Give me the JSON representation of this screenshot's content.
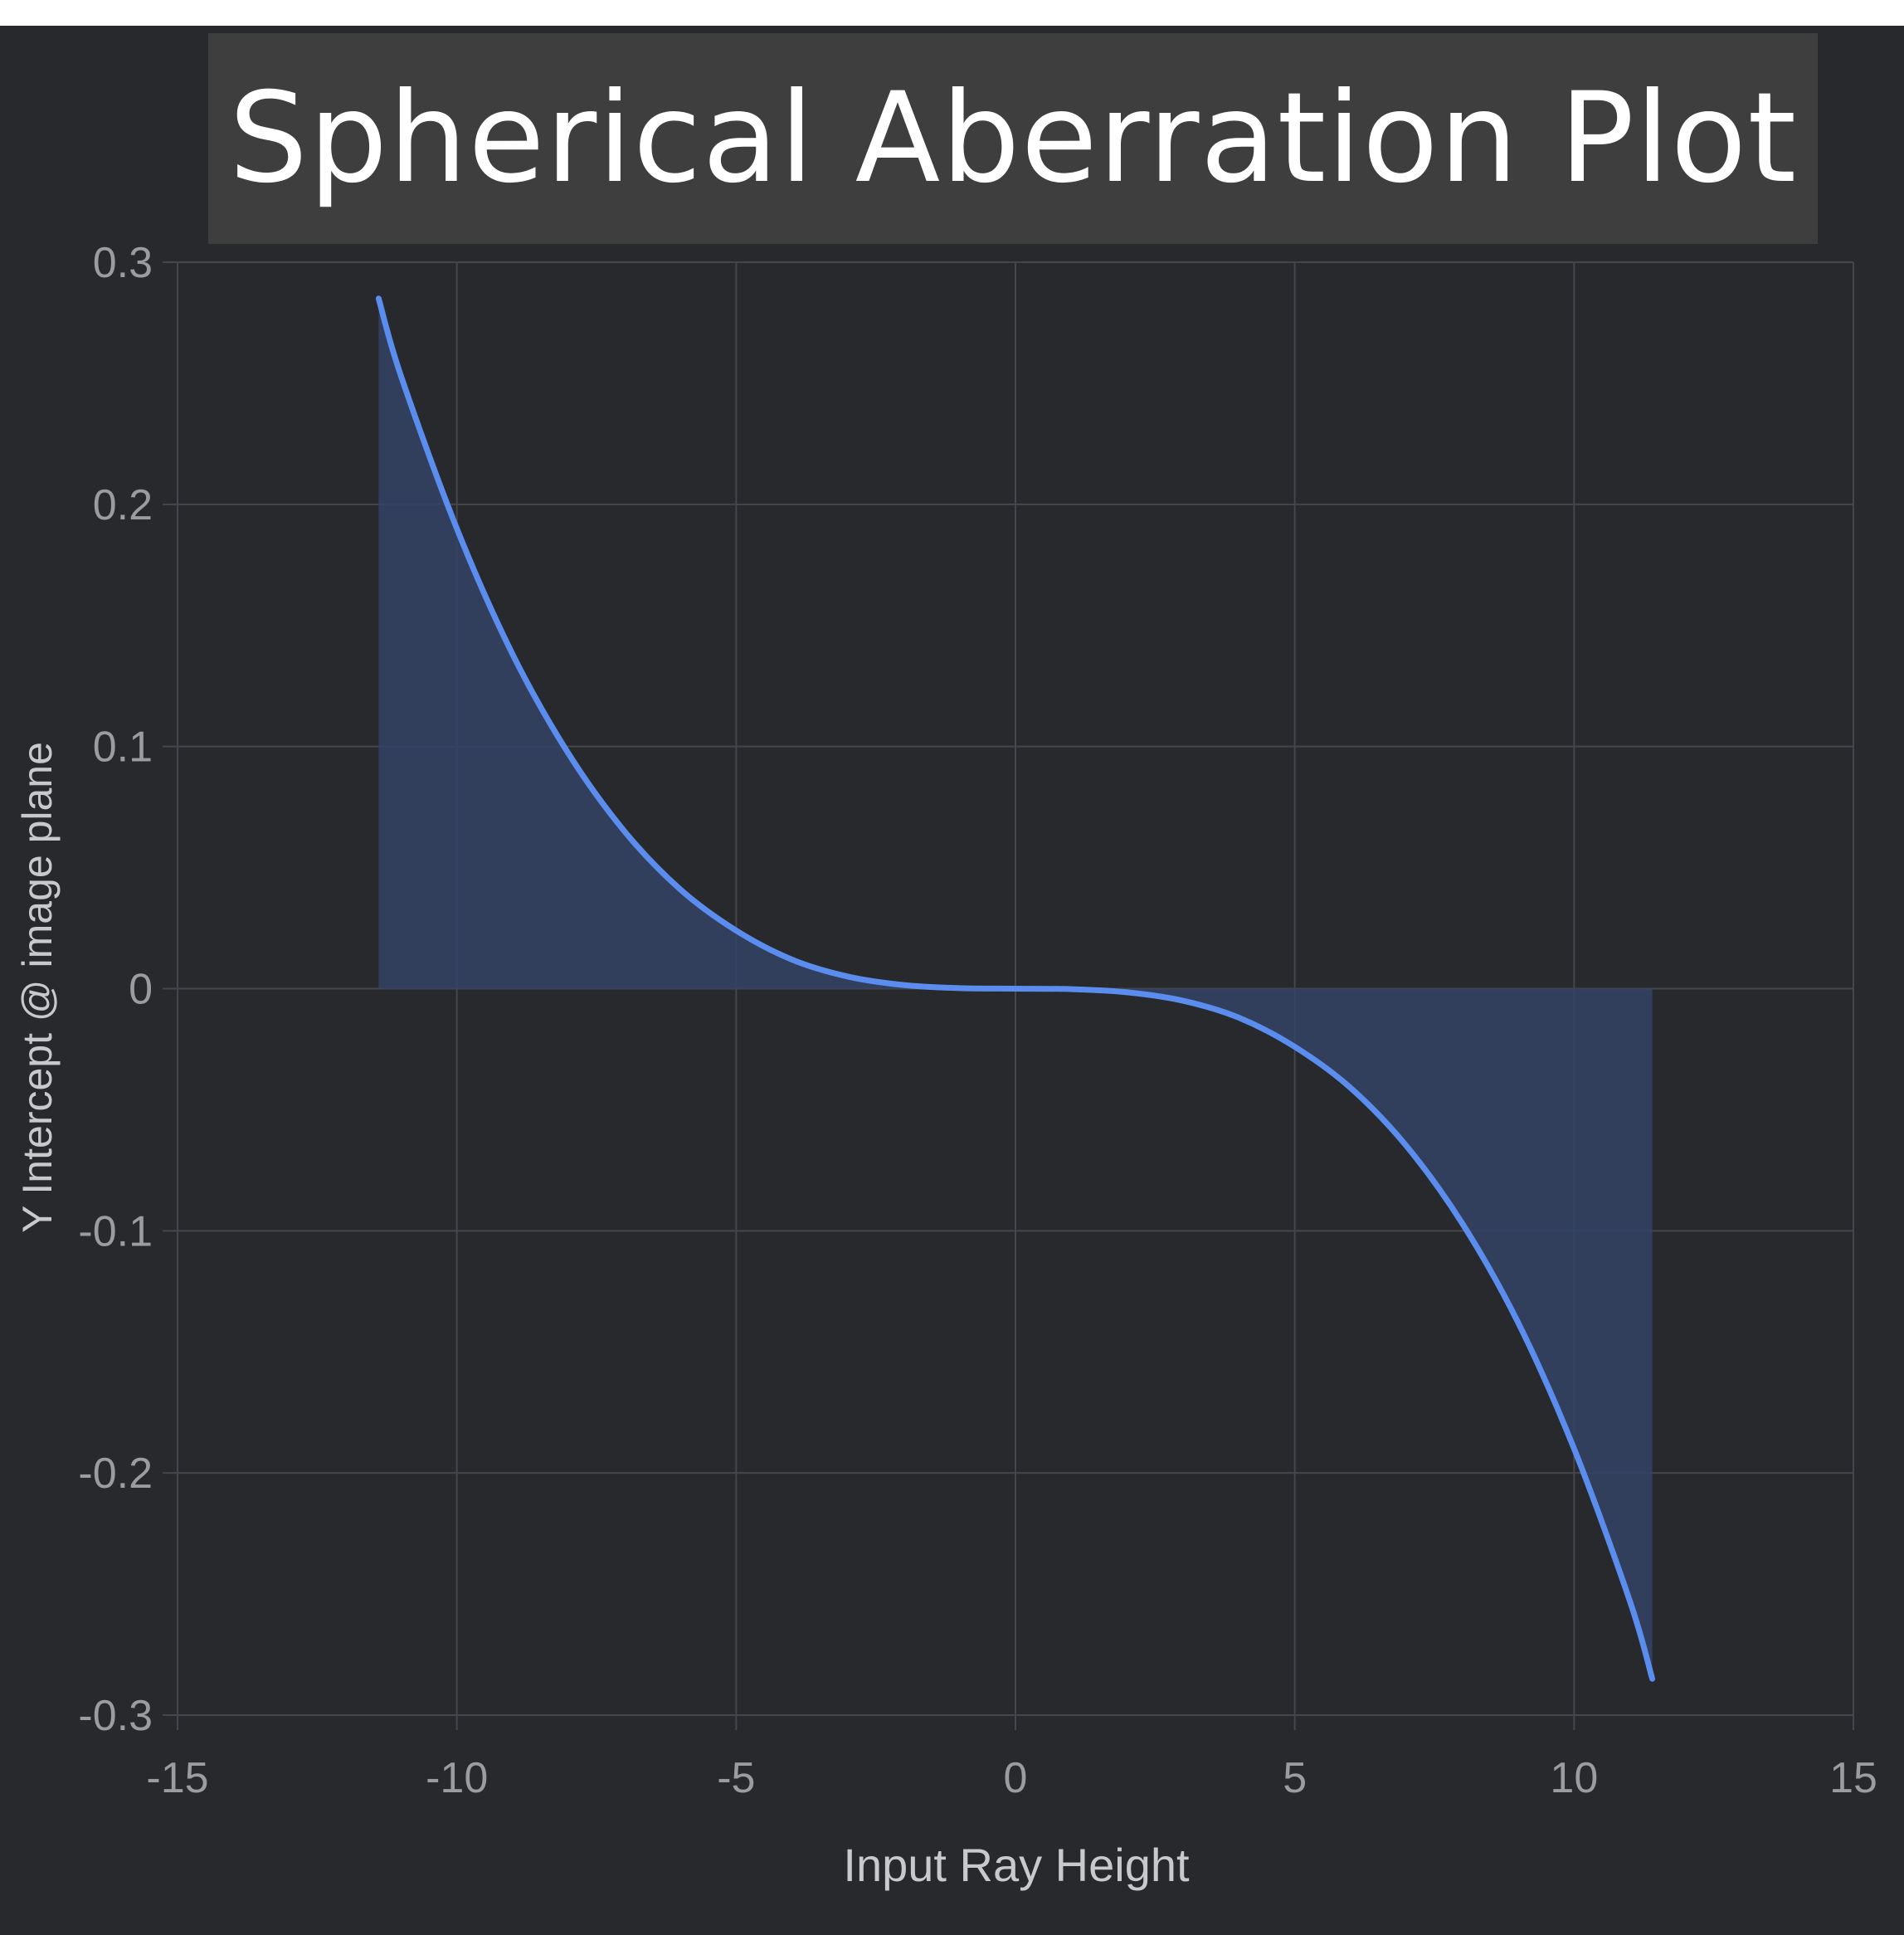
{
  "chart_data": {
    "type": "area",
    "title": "Spherical Aberration Plot",
    "xlabel": "Input Ray Height",
    "ylabel": "Y Intercept @ image plane",
    "xlim": [
      -15,
      15
    ],
    "ylim": [
      -0.3,
      0.3
    ],
    "xticks": [
      -15,
      -10,
      -5,
      0,
      5,
      10,
      15
    ],
    "yticks": [
      0.3,
      0.2,
      0.1,
      0,
      -0.1,
      -0.2,
      -0.3
    ],
    "xtick_labels": [
      "-15",
      "-10",
      "-5",
      "0",
      "5",
      "10",
      "15"
    ],
    "ytick_labels": [
      "0.3",
      "0.2",
      "0.1",
      "0",
      "-0.1",
      "-0.2",
      "-0.3"
    ],
    "grid": true,
    "series": [
      {
        "x": [
          -11.4,
          -11,
          -10,
          -9,
          -8,
          -7,
          -6,
          -5,
          -4,
          -3,
          -2,
          -1,
          0,
          1,
          2,
          3,
          4,
          5,
          6,
          7,
          8,
          9,
          10,
          11,
          11.4
        ],
        "y": [
          0.285,
          0.253,
          0.19,
          0.138,
          0.097,
          0.065,
          0.041,
          0.024,
          0.012,
          0.005,
          0.0015,
          0.0002,
          0,
          -0.0002,
          -0.0015,
          -0.005,
          -0.012,
          -0.024,
          -0.041,
          -0.065,
          -0.097,
          -0.138,
          -0.19,
          -0.253,
          -0.285
        ]
      }
    ],
    "colors": {
      "line": "#5b8def",
      "fill": "#334366",
      "grid": "#44464c",
      "tick_text": "#9a9ca0",
      "label_text": "#c8c9cc",
      "background": "#28292d"
    }
  }
}
